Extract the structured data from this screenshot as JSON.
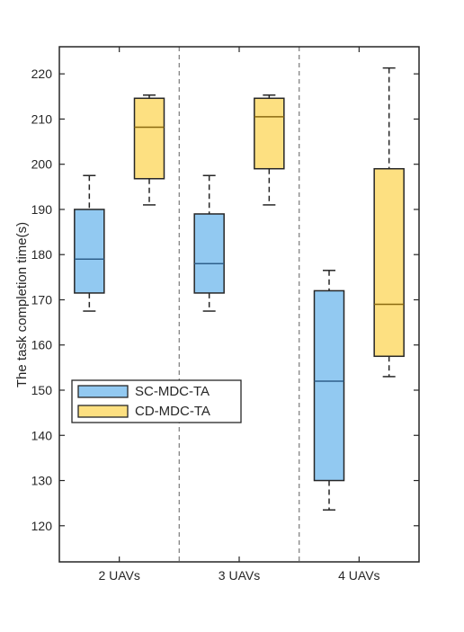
{
  "chart_data": {
    "type": "boxplot",
    "title": "",
    "xlabel": "",
    "ylabel": "The task completion time(s)",
    "ylim": [
      112,
      226
    ],
    "yticks": [
      120,
      130,
      140,
      150,
      160,
      170,
      180,
      190,
      200,
      210,
      220
    ],
    "categories": [
      "2 UAVs",
      "3 UAVs",
      "4 UAVs"
    ],
    "grid": false,
    "group_separators": "dashed",
    "legend_position": "middle-left",
    "series": [
      {
        "name": "SC-MDC-TA",
        "color": "#92c9f1",
        "boxes": [
          {
            "min": 167.5,
            "q1": 171.5,
            "median": 179,
            "q3": 190,
            "max": 197.5
          },
          {
            "min": 167.5,
            "q1": 171.5,
            "median": 178,
            "q3": 189,
            "max": 197.5
          },
          {
            "min": 123.5,
            "q1": 130,
            "median": 152,
            "q3": 172,
            "max": 176.5
          }
        ]
      },
      {
        "name": "CD-MDC-TA",
        "color": "#fde081",
        "boxes": [
          {
            "min": 191,
            "q1": 196.8,
            "median": 208.2,
            "q3": 214.6,
            "max": 215.3
          },
          {
            "min": 191,
            "q1": 199,
            "median": 210.5,
            "q3": 214.6,
            "max": 215.3
          },
          {
            "min": 153,
            "q1": 157.5,
            "median": 169,
            "q3": 199,
            "max": 221.3
          }
        ]
      }
    ]
  }
}
